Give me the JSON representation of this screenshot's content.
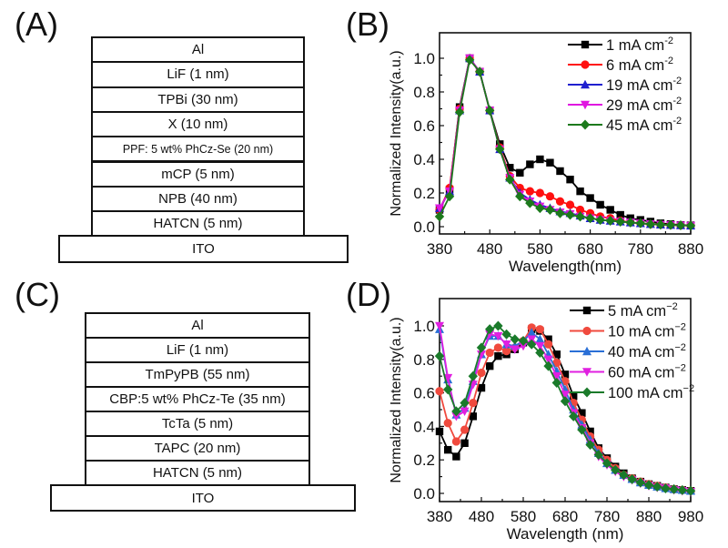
{
  "panels": {
    "a": {
      "label": "(A)"
    },
    "b": {
      "label": "(B)"
    },
    "c": {
      "label": "(C)"
    },
    "d": {
      "label": "(D)"
    }
  },
  "device_a": {
    "layers": [
      "Al",
      "LiF (1 nm)",
      "TPBi (30 nm)",
      "X (10 nm)",
      "PPF: 5 wt% PhCz-Se (20 nm)",
      "mCP (5 nm)",
      "NPB (40 nm)",
      "HATCN (5 nm)"
    ],
    "substrate": "ITO"
  },
  "device_c": {
    "layers": [
      "Al",
      "LiF (1 nm)",
      "TmPyPB (55 nm)",
      "CBP:5 wt% PhCz-Te (35 nm)",
      "TcTa (5 nm)",
      "TAPC (20 nm)",
      "HATCN (5 nm)"
    ],
    "substrate": "ITO"
  },
  "chart_data": [
    {
      "id": "B",
      "type": "line",
      "title": "",
      "xlabel": "Wavelength(nm)",
      "ylabel": "Normalized Intensity(a.u.)",
      "xlim": [
        380,
        880
      ],
      "ylim": [
        -0.03,
        1.15
      ],
      "xticks": [
        380,
        480,
        580,
        680,
        780,
        880
      ],
      "yticks": [
        0.0,
        0.2,
        0.4,
        0.6,
        0.8,
        1.0
      ],
      "ytick_labels": [
        "0.0",
        "0.2",
        "0.4",
        "0.6",
        "0.8",
        "1.0"
      ],
      "legend_position": "top-right",
      "grid": false,
      "x": [
        380,
        400,
        420,
        440,
        460,
        480,
        500,
        520,
        540,
        560,
        580,
        600,
        620,
        640,
        660,
        680,
        700,
        720,
        740,
        760,
        780,
        800,
        820,
        840,
        860,
        880
      ],
      "series": [
        {
          "name": "1 mA cm",
          "sup": "-2",
          "color": "#000000",
          "marker": "square",
          "values": [
            0.1,
            0.22,
            0.71,
            1.0,
            0.92,
            0.69,
            0.49,
            0.35,
            0.32,
            0.37,
            0.4,
            0.38,
            0.33,
            0.28,
            0.21,
            0.17,
            0.13,
            0.1,
            0.07,
            0.05,
            0.04,
            0.03,
            0.02,
            0.015,
            0.01,
            0.008
          ]
        },
        {
          "name": "6 mA cm",
          "sup": "-2",
          "color": "#ff1010",
          "marker": "circle",
          "values": [
            0.1,
            0.23,
            0.7,
            1.0,
            0.92,
            0.69,
            0.47,
            0.3,
            0.23,
            0.21,
            0.2,
            0.18,
            0.15,
            0.13,
            0.1,
            0.08,
            0.06,
            0.05,
            0.035,
            0.025,
            0.02,
            0.015,
            0.012,
            0.01,
            0.008,
            0.006
          ]
        },
        {
          "name": "19 mA cm",
          "sup": "-2",
          "color": "#1f1fcf",
          "marker": "triangle-up",
          "values": [
            0.11,
            0.21,
            0.69,
            1.0,
            0.92,
            0.69,
            0.46,
            0.29,
            0.2,
            0.16,
            0.13,
            0.11,
            0.09,
            0.08,
            0.065,
            0.05,
            0.04,
            0.035,
            0.03,
            0.025,
            0.02,
            0.015,
            0.012,
            0.01,
            0.008,
            0.006
          ]
        },
        {
          "name": "29 mA cm",
          "sup": "-2",
          "color": "#e016e0",
          "marker": "triangle-down",
          "values": [
            0.11,
            0.21,
            0.69,
            1.0,
            0.92,
            0.69,
            0.46,
            0.29,
            0.19,
            0.15,
            0.12,
            0.1,
            0.085,
            0.075,
            0.06,
            0.05,
            0.04,
            0.035,
            0.03,
            0.025,
            0.02,
            0.015,
            0.012,
            0.01,
            0.008,
            0.006
          ]
        },
        {
          "name": "45 mA cm",
          "sup": "-2",
          "color": "#1c7a1c",
          "marker": "diamond",
          "values": [
            0.06,
            0.18,
            0.68,
            0.99,
            0.92,
            0.69,
            0.46,
            0.28,
            0.18,
            0.14,
            0.11,
            0.1,
            0.08,
            0.07,
            0.06,
            0.05,
            0.04,
            0.035,
            0.03,
            0.025,
            0.02,
            0.015,
            0.012,
            0.01,
            0.008,
            0.006
          ]
        }
      ]
    },
    {
      "id": "D",
      "type": "line",
      "title": "",
      "xlabel": "Wavelength (nm)",
      "ylabel": "Normalized Intensity(a.u.)",
      "xlim": [
        380,
        980
      ],
      "ylim": [
        -0.05,
        1.15
      ],
      "xticks": [
        380,
        480,
        580,
        680,
        780,
        880,
        980
      ],
      "yticks": [
        0.0,
        0.2,
        0.4,
        0.6,
        0.8,
        1.0
      ],
      "ytick_labels": [
        "0.0",
        "0.2",
        "0.4",
        "0.6",
        "0.8",
        "1.0"
      ],
      "legend_position": "top-right",
      "grid": false,
      "x": [
        380,
        400,
        420,
        440,
        460,
        480,
        500,
        520,
        540,
        560,
        580,
        600,
        620,
        640,
        660,
        680,
        700,
        720,
        740,
        760,
        780,
        800,
        820,
        840,
        860,
        880,
        900,
        920,
        940,
        960,
        980
      ],
      "series": [
        {
          "name": "5 mA cm",
          "sup": "−2",
          "color": "#000000",
          "marker": "square",
          "values": [
            0.37,
            0.26,
            0.22,
            0.3,
            0.46,
            0.63,
            0.76,
            0.82,
            0.83,
            0.86,
            0.9,
            0.98,
            0.97,
            0.92,
            0.83,
            0.71,
            0.58,
            0.48,
            0.37,
            0.27,
            0.21,
            0.16,
            0.12,
            0.09,
            0.07,
            0.055,
            0.045,
            0.035,
            0.025,
            0.02,
            0.015
          ]
        },
        {
          "name": "10 mA cm",
          "sup": "−2",
          "color": "#f04a3e",
          "marker": "circle",
          "values": [
            0.61,
            0.42,
            0.31,
            0.38,
            0.54,
            0.72,
            0.84,
            0.87,
            0.85,
            0.87,
            0.91,
            0.99,
            0.98,
            0.89,
            0.78,
            0.67,
            0.54,
            0.44,
            0.34,
            0.26,
            0.2,
            0.15,
            0.11,
            0.09,
            0.07,
            0.055,
            0.045,
            0.035,
            0.025,
            0.02,
            0.015
          ]
        },
        {
          "name": "40 mA cm",
          "sup": "−2",
          "color": "#2a6fd6",
          "marker": "triangle-up",
          "values": [
            0.98,
            0.68,
            0.47,
            0.51,
            0.67,
            0.83,
            0.94,
            0.94,
            0.89,
            0.88,
            0.91,
            0.96,
            0.92,
            0.83,
            0.73,
            0.62,
            0.5,
            0.41,
            0.32,
            0.24,
            0.18,
            0.14,
            0.11,
            0.085,
            0.065,
            0.05,
            0.04,
            0.03,
            0.025,
            0.02,
            0.015
          ]
        },
        {
          "name": "60 mA cm",
          "sup": "−2",
          "color": "#e020e0",
          "marker": "triangle-down",
          "values": [
            1.0,
            0.69,
            0.46,
            0.49,
            0.65,
            0.83,
            0.95,
            0.94,
            0.89,
            0.86,
            0.88,
            0.92,
            0.88,
            0.8,
            0.7,
            0.59,
            0.48,
            0.39,
            0.3,
            0.22,
            0.17,
            0.13,
            0.1,
            0.08,
            0.06,
            0.045,
            0.035,
            0.03,
            0.02,
            0.015,
            0.01
          ]
        },
        {
          "name": "100 mA cm",
          "sup": "−2",
          "color": "#1a7a2a",
          "marker": "diamond",
          "values": [
            0.82,
            0.62,
            0.49,
            0.54,
            0.7,
            0.87,
            0.98,
            1.0,
            0.95,
            0.92,
            0.91,
            0.89,
            0.84,
            0.76,
            0.66,
            0.55,
            0.46,
            0.38,
            0.29,
            0.23,
            0.18,
            0.14,
            0.11,
            0.085,
            0.065,
            0.05,
            0.04,
            0.03,
            0.025,
            0.02,
            0.015
          ]
        }
      ]
    }
  ]
}
